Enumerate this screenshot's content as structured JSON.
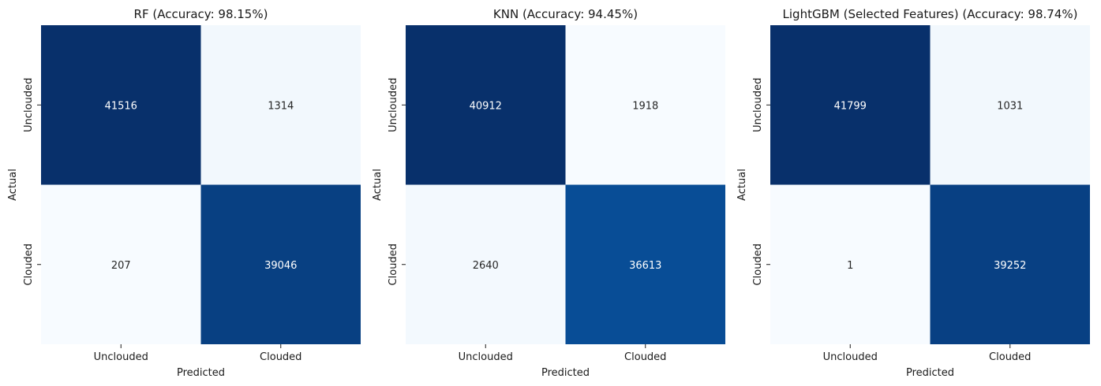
{
  "chart_data": [
    {
      "type": "heatmap",
      "title": "RF (Accuracy: 98.15%)",
      "xlabel": "Predicted",
      "ylabel": "Actual",
      "x_categories": [
        "Unclouded",
        "Clouded"
      ],
      "y_categories": [
        "Unclouded",
        "Clouded"
      ],
      "values": [
        [
          41516,
          1314
        ],
        [
          207,
          39046
        ]
      ],
      "colormap": "Blues",
      "colorbar": false
    },
    {
      "type": "heatmap",
      "title": "KNN (Accuracy: 94.45%)",
      "xlabel": "Predicted",
      "ylabel": "Actual",
      "x_categories": [
        "Unclouded",
        "Clouded"
      ],
      "y_categories": [
        "Unclouded",
        "Clouded"
      ],
      "values": [
        [
          40912,
          1918
        ],
        [
          2640,
          36613
        ]
      ],
      "colormap": "Blues",
      "colorbar": false
    },
    {
      "type": "heatmap",
      "title": "LightGBM (Selected Features) (Accuracy: 98.74%)",
      "xlabel": "Predicted",
      "ylabel": "Actual",
      "x_categories": [
        "Unclouded",
        "Clouded"
      ],
      "y_categories": [
        "Unclouded",
        "Clouded"
      ],
      "values": [
        [
          41799,
          1031
        ],
        [
          1,
          39252
        ]
      ],
      "colormap": "Blues",
      "colorbar": false
    }
  ]
}
